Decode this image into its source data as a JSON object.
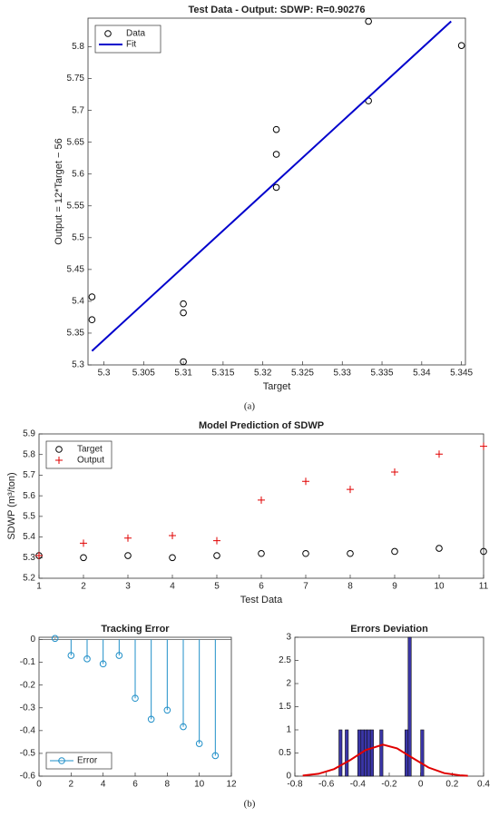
{
  "chart_data": [
    {
      "type": "scatter",
      "title": "Test Data - Output: SDWP: R=0.90276",
      "xlabel": "Target",
      "ylabel": "Output = 12*Target − 56",
      "xlim": [
        5.298,
        5.3455
      ],
      "xticks": [
        5.3,
        5.305,
        5.31,
        5.315,
        5.32,
        5.325,
        5.33,
        5.335,
        5.34,
        5.345
      ],
      "ylim": [
        5.3,
        5.845
      ],
      "yticks": [
        5.3,
        5.35,
        5.4,
        5.45,
        5.5,
        5.55,
        5.6,
        5.65,
        5.7,
        5.75,
        5.8
      ],
      "legend": "upper left",
      "caption": "(a)",
      "series": [
        {
          "name": "Data",
          "color": "#000000",
          "marker": "o",
          "x": [
            5.2985,
            5.2985,
            5.31,
            5.31,
            5.31,
            5.3217,
            5.3217,
            5.3217,
            5.3333,
            5.3333,
            5.345
          ],
          "values": [
            5.407,
            5.371,
            5.396,
            5.382,
            5.305,
            5.67,
            5.631,
            5.579,
            5.715,
            5.84,
            5.802
          ]
        },
        {
          "name": "Fit",
          "color": "#0000cc",
          "marker": "line",
          "x": [
            5.2985,
            5.3437
          ],
          "values": [
            5.322,
            5.84
          ]
        }
      ]
    },
    {
      "type": "scatter",
      "title": "Model Prediction of SDWP",
      "xlabel": "Test Data",
      "ylabel": "SDWP (m³/ton)",
      "xlim": [
        1,
        11
      ],
      "xticks": [
        1,
        2,
        3,
        4,
        5,
        6,
        7,
        8,
        9,
        10,
        11
      ],
      "ylim": [
        5.2,
        5.9
      ],
      "yticks": [
        5.2,
        5.3,
        5.4,
        5.5,
        5.6,
        5.7,
        5.8,
        5.9
      ],
      "legend": "upper left",
      "caption": "(b)",
      "series": [
        {
          "name": "Target",
          "color": "#000000",
          "marker": "o",
          "x": [
            1,
            2,
            3,
            4,
            5,
            6,
            7,
            8,
            9,
            10,
            11
          ],
          "values": [
            5.31,
            5.3,
            5.31,
            5.3,
            5.31,
            5.32,
            5.32,
            5.32,
            5.33,
            5.345,
            5.33
          ]
        },
        {
          "name": "Output",
          "color": "#e00000",
          "marker": "+",
          "x": [
            1,
            2,
            3,
            4,
            5,
            6,
            7,
            8,
            9,
            10,
            11
          ],
          "values": [
            5.31,
            5.37,
            5.395,
            5.407,
            5.382,
            5.579,
            5.67,
            5.631,
            5.715,
            5.802,
            5.84
          ]
        }
      ]
    },
    {
      "type": "stem",
      "title": "Tracking Error",
      "xlim": [
        0,
        12
      ],
      "xticks": [
        0,
        2,
        4,
        6,
        8,
        10,
        12
      ],
      "ylim": [
        -0.6,
        0.01
      ],
      "yticks": [
        0,
        -0.1,
        -0.2,
        -0.3,
        -0.4,
        -0.5,
        -0.6
      ],
      "legend": "lower left",
      "series": [
        {
          "name": "Error",
          "color": "#1f8fc8",
          "marker": "stem",
          "x": [
            1,
            2,
            3,
            4,
            5,
            6,
            7,
            8,
            9,
            10,
            11
          ],
          "values": [
            0.005,
            -0.07,
            -0.085,
            -0.107,
            -0.07,
            -0.258,
            -0.35,
            -0.31,
            -0.383,
            -0.457,
            -0.51
          ]
        }
      ]
    },
    {
      "type": "histogram",
      "title": "Errors Deviation",
      "xlim": [
        -0.8,
        0.4
      ],
      "xticks": [
        -0.8,
        -0.6,
        -0.4,
        -0.2,
        0,
        0.2,
        0.4
      ],
      "ylim": [
        0,
        3
      ],
      "yticks": [
        0,
        0.5,
        1,
        1.5,
        2,
        2.5,
        3
      ],
      "color": "#3a35a8",
      "bins": [
        -0.52,
        -0.5,
        -0.48,
        -0.46,
        -0.44,
        -0.42,
        -0.4,
        -0.38,
        -0.36,
        -0.34,
        -0.32,
        -0.3,
        -0.28,
        -0.26,
        -0.24,
        -0.22,
        -0.2,
        -0.18,
        -0.16,
        -0.14,
        -0.12,
        -0.1,
        -0.08,
        -0.06,
        -0.04,
        -0.02,
        0,
        0.02
      ],
      "counts": [
        1,
        0,
        1,
        0,
        0,
        0,
        1,
        1,
        1,
        1,
        1,
        0,
        0,
        1,
        0,
        0,
        0,
        0,
        0,
        0,
        0,
        1,
        3,
        0,
        0,
        0,
        1
      ],
      "fit": {
        "color": "#e00000",
        "x": [
          -0.75,
          -0.65,
          -0.55,
          -0.45,
          -0.35,
          -0.24,
          -0.15,
          -0.05,
          0.05,
          0.15,
          0.25,
          0.3
        ],
        "values": [
          0.012,
          0.051,
          0.154,
          0.344,
          0.564,
          0.68,
          0.6,
          0.39,
          0.186,
          0.065,
          0.017,
          0.008
        ]
      }
    }
  ]
}
